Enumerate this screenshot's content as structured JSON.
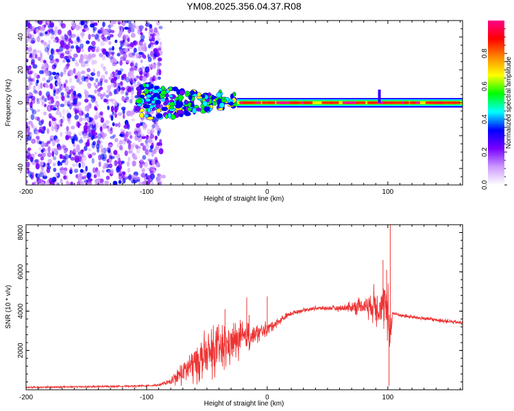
{
  "figure": {
    "title": "YM08.2025.356.04.37.R08"
  },
  "chart_data": [
    {
      "type": "heatmap",
      "name": "spectrogram",
      "xlabel": "Height of straight line (km)",
      "ylabel": "Frequency (Hz)",
      "xlim": [
        -200,
        162
      ],
      "ylim": [
        -50,
        50
      ],
      "x_ticks": [
        -200,
        -100,
        0,
        100
      ],
      "x_tick_labels": [
        "-200",
        "-100",
        "0",
        "100"
      ],
      "y_ticks": [
        -40,
        -20,
        0,
        20,
        40
      ],
      "y_tick_labels": [
        "-40",
        "-20",
        "0",
        "20",
        "40"
      ],
      "colorbar": {
        "label": "Normalized spectral amplitude",
        "range": [
          0,
          1
        ],
        "ticks": [
          0,
          0.2,
          0.4,
          0.6,
          0.8
        ],
        "tick_labels": [
          "0.0",
          "0.2",
          "0.4",
          "0.6",
          "0.8"
        ],
        "colors": [
          "#ffffff",
          "#cc99ff",
          "#7700ff",
          "#0000ff",
          "#00ffff",
          "#00ff00",
          "#ffff00",
          "#ff8800",
          "#ff0000",
          "#ff0088"
        ]
      },
      "features": {
        "noise_region_x": [
          -200,
          -88
        ],
        "signal_onset_x": -108,
        "scattered_signal_x": [
          -90,
          -25
        ],
        "coherent_line_x": [
          -25,
          162
        ],
        "center_frequency": 0,
        "spike_x": 93,
        "spike_freq_max": 8
      }
    },
    {
      "type": "line",
      "name": "snr",
      "xlabel": "Height of straight line (km)",
      "ylabel": "SNR (10 * v/v)",
      "xlim": [
        -200,
        162
      ],
      "ylim": [
        0,
        8400
      ],
      "x_ticks": [
        -200,
        -100,
        0,
        100
      ],
      "x_tick_labels": [
        "-200",
        "-100",
        "0",
        "100"
      ],
      "y_ticks": [
        2000,
        4000,
        6000,
        8000
      ],
      "y_tick_labels": [
        "2000",
        "4000",
        "6000",
        "8000"
      ],
      "color": "#ee3333",
      "series": [
        {
          "name": "SNR",
          "x": [
            -200,
            -180,
            -160,
            -140,
            -120,
            -100,
            -90,
            -80,
            -75,
            -70,
            -65,
            -60,
            -55,
            -50,
            -45,
            -40,
            -35,
            -30,
            -25,
            -20,
            -15,
            -10,
            -5,
            0,
            5,
            10,
            15,
            20,
            30,
            40,
            50,
            60,
            70,
            80,
            90,
            95,
            98,
            100,
            102,
            104,
            110,
            120,
            140,
            162
          ],
          "values": [
            120,
            130,
            150,
            160,
            180,
            200,
            250,
            400,
            650,
            900,
            1150,
            1400,
            1600,
            1750,
            1900,
            2050,
            2200,
            2350,
            2500,
            2600,
            2700,
            2800,
            2950,
            3100,
            3300,
            3500,
            3700,
            3900,
            4050,
            4150,
            4150,
            4150,
            4200,
            4300,
            4300,
            4250,
            4200,
            3800,
            3000,
            3900,
            3800,
            3700,
            3550,
            3400
          ],
          "noise_amplitude": [
            60,
            60,
            60,
            60,
            60,
            60,
            80,
            180,
            450,
            750,
            1000,
            1200,
            1300,
            1400,
            1400,
            1400,
            1300,
            1200,
            1100,
            950,
            800,
            600,
            500,
            400,
            300,
            250,
            200,
            150,
            130,
            120,
            150,
            200,
            350,
            600,
            1200,
            1400,
            1600,
            1800,
            1500,
            150,
            130,
            120,
            120,
            120
          ]
        }
      ],
      "spikes": [
        {
          "x": -35,
          "value": 4100
        },
        {
          "x": -17,
          "value": 4700
        },
        {
          "x": -15,
          "value": 3800
        },
        {
          "x": 0,
          "value": 4750
        },
        {
          "x": 96,
          "value": 6600
        },
        {
          "x": 99,
          "value": 6100
        },
        {
          "x": 102,
          "value": 8400
        },
        {
          "x": 101,
          "value": 200
        }
      ]
    }
  ]
}
